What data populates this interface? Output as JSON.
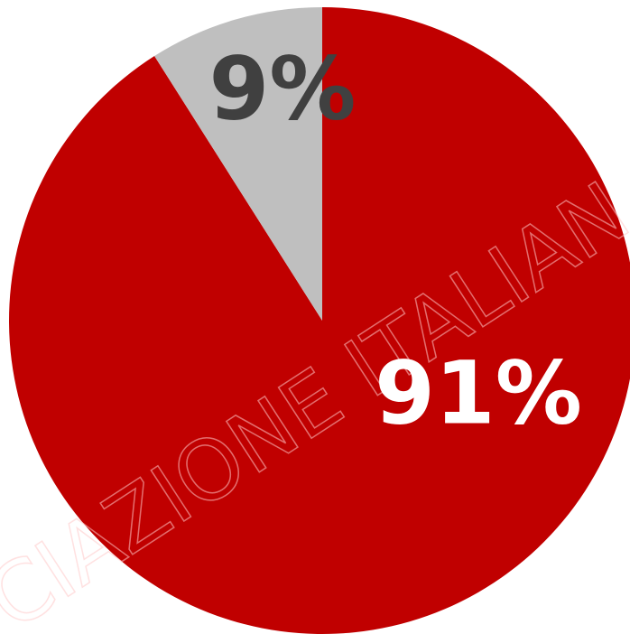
{
  "chart_data": {
    "type": "pie",
    "values": [
      91,
      9
    ],
    "value_labels": [
      "91%",
      "9%"
    ],
    "colors": [
      "#c00000",
      "#bfbfbf"
    ],
    "label_colors": [
      "#ffffff",
      "#404040"
    ],
    "watermark": "CIAZIONE ITALIAN"
  }
}
